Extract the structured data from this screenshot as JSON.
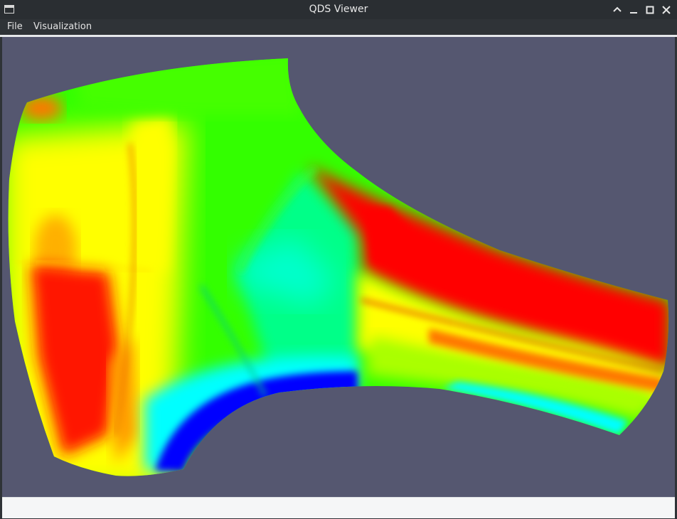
{
  "window": {
    "title": "QDS Viewer"
  },
  "menu": {
    "items": [
      {
        "label": "File"
      },
      {
        "label": "Visualization"
      }
    ]
  },
  "window_controls": {
    "collapse": "chevron-down-icon",
    "minimize": "minimize-icon",
    "maximize": "maximize-icon",
    "close": "close-icon"
  },
  "viewport": {
    "background": "#555770",
    "content": "surface-heatmap",
    "palette": [
      "#0000ff",
      "#00ffff",
      "#00ff00",
      "#ffff00",
      "#ff0000"
    ]
  },
  "statusbar": {
    "text": ""
  }
}
